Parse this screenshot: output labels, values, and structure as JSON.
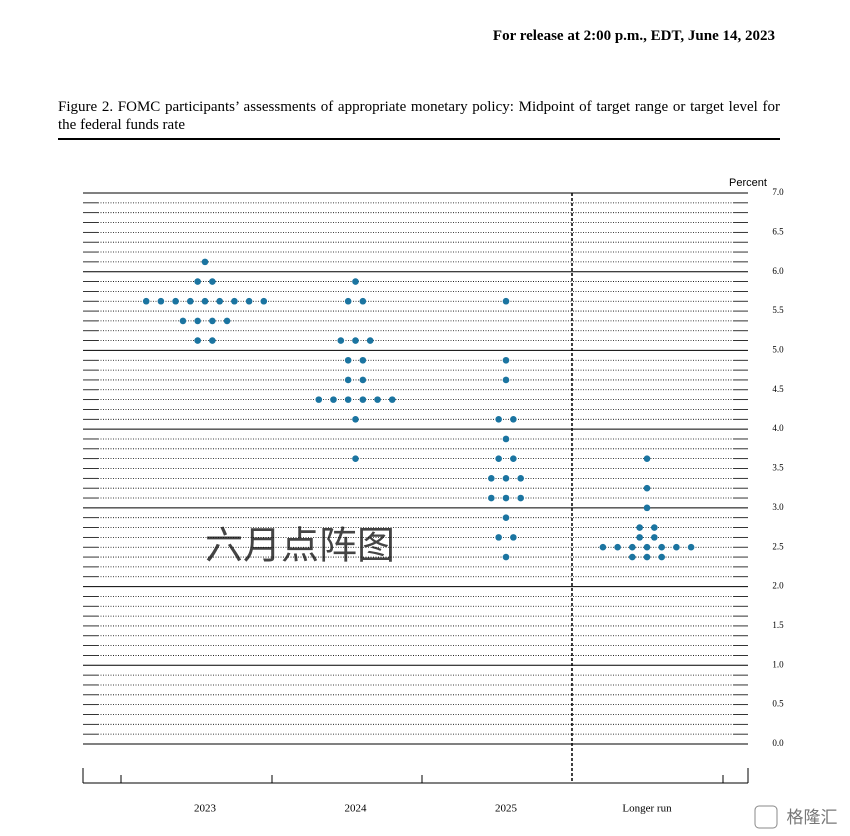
{
  "header": "For release at 2:00 p.m., EDT, June 14, 2023",
  "chart_data": {
    "type": "dot_plot",
    "title": "Figure 2.  FOMC participants’ assessments of appropriate monetary policy: Midpoint of target range or target level for the federal funds rate",
    "y_label": "Percent",
    "annotation": "六月点阵图",
    "categories": [
      "2023",
      "2024",
      "2025",
      "Longer run"
    ],
    "dots": [
      [
        6.125,
        5.875,
        5.875,
        5.625,
        5.625,
        5.625,
        5.625,
        5.625,
        5.625,
        5.625,
        5.625,
        5.625,
        5.375,
        5.375,
        5.375,
        5.375,
        5.125,
        5.125
      ],
      [
        5.875,
        5.625,
        5.625,
        5.125,
        5.125,
        5.125,
        4.875,
        4.875,
        4.625,
        4.625,
        4.375,
        4.375,
        4.375,
        4.375,
        4.375,
        4.375,
        4.125,
        3.625
      ],
      [
        5.625,
        4.875,
        4.625,
        4.125,
        4.125,
        3.875,
        3.625,
        3.625,
        3.375,
        3.375,
        3.375,
        3.125,
        3.125,
        3.125,
        2.875,
        2.625,
        2.625,
        2.375
      ],
      [
        3.625,
        3.25,
        3.0,
        2.75,
        2.75,
        2.625,
        2.625,
        2.5,
        2.5,
        2.5,
        2.5,
        2.5,
        2.5,
        2.5,
        2.375,
        2.375,
        2.375
      ]
    ],
    "color": "#1b74a0",
    "ylim": [
      0,
      7
    ],
    "yticks": [
      {
        "value": 0,
        "label": "0.0"
      },
      0.5,
      {
        "value": 1,
        "label": "1.0"
      },
      1.5,
      {
        "value": 2,
        "label": "2.0"
      },
      2.5,
      {
        "value": 3,
        "label": "3.0"
      },
      3.5,
      {
        "value": 4,
        "label": "4.0"
      },
      4.5,
      {
        "value": 5,
        "label": "5.0"
      },
      5.5,
      {
        "value": 6,
        "label": "6.0"
      },
      6.5,
      {
        "value": 7,
        "label": "7.0"
      }
    ]
  },
  "logo": "格隆汇"
}
